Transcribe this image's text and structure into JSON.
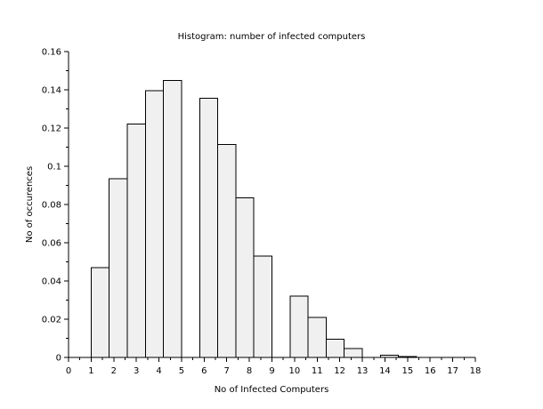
{
  "chart_data": {
    "type": "bar",
    "title": "Histogram: number of infected computers",
    "xlabel": "No of Infected Computers",
    "ylabel": "No of occurences",
    "xlim": [
      0,
      18
    ],
    "ylim": [
      0,
      0.16
    ],
    "x_ticks": [
      "0",
      "1",
      "2",
      "3",
      "4",
      "5",
      "6",
      "7",
      "8",
      "9",
      "10",
      "11",
      "12",
      "13",
      "14",
      "15",
      "16",
      "17",
      "18"
    ],
    "y_ticks": [
      "0",
      "0.02",
      "0.04",
      "0.06",
      "0.08",
      "0.1",
      "0.12",
      "0.14",
      "0.16"
    ],
    "bins": [
      {
        "start": 1.0,
        "end": 1.8,
        "value": 0.047
      },
      {
        "start": 1.8,
        "end": 2.6,
        "value": 0.0935
      },
      {
        "start": 2.6,
        "end": 3.4,
        "value": 0.122
      },
      {
        "start": 3.4,
        "end": 4.2,
        "value": 0.1395
      },
      {
        "start": 4.2,
        "end": 5.0,
        "value": 0.145
      },
      {
        "start": 5.8,
        "end": 6.6,
        "value": 0.1355
      },
      {
        "start": 6.6,
        "end": 7.4,
        "value": 0.1115
      },
      {
        "start": 7.4,
        "end": 8.2,
        "value": 0.0835
      },
      {
        "start": 8.2,
        "end": 9.0,
        "value": 0.053
      },
      {
        "start": 9.8,
        "end": 10.6,
        "value": 0.032
      },
      {
        "start": 10.6,
        "end": 11.4,
        "value": 0.021
      },
      {
        "start": 11.4,
        "end": 12.2,
        "value": 0.0095
      },
      {
        "start": 12.2,
        "end": 13.0,
        "value": 0.0047
      },
      {
        "start": 13.8,
        "end": 14.6,
        "value": 0.0012
      },
      {
        "start": 14.6,
        "end": 15.4,
        "value": 0.0004
      }
    ],
    "bar_color": "#f0f0f0",
    "edge_color": "#000000",
    "grid": false
  }
}
